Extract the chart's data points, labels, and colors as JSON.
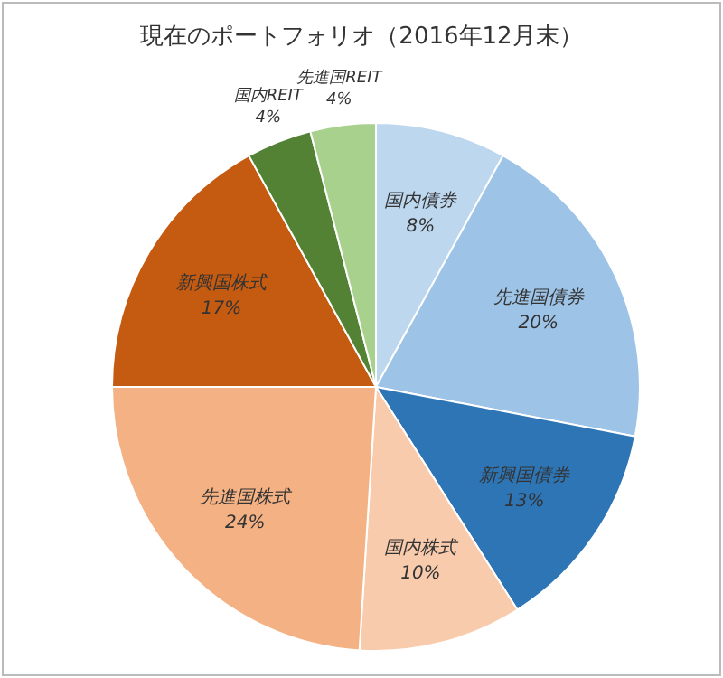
{
  "chart_data": {
    "type": "pie",
    "title": "現在のポートフォリオ（2016年12月末）",
    "categories": [
      "国内債券",
      "先進国債券",
      "新興国債券",
      "国内株式",
      "先進国株式",
      "新興国株式",
      "国内REIT",
      "先進国REIT"
    ],
    "values": [
      8,
      20,
      13,
      10,
      24,
      17,
      4,
      4
    ],
    "value_labels": [
      "8%",
      "20%",
      "13%",
      "10%",
      "24%",
      "17%",
      "4%",
      "4%"
    ],
    "colors": [
      "#bdd7ee",
      "#9dc3e6",
      "#2e75b6",
      "#f8cbad",
      "#f4b183",
      "#c55a11",
      "#548235",
      "#a9d18e"
    ]
  }
}
